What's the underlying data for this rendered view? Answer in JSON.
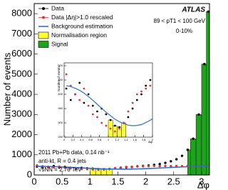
{
  "chart_data": {
    "type": "scatter",
    "xlabel": "Δφ",
    "ylabel": "Number of events",
    "x": [
      0.05,
      0.15,
      0.25,
      0.35,
      0.45,
      0.55,
      0.65,
      0.75,
      0.85,
      0.95,
      1.05,
      1.15,
      1.25,
      1.35,
      1.45,
      1.55,
      1.65,
      1.75,
      1.85,
      1.95,
      2.05,
      2.15,
      2.25,
      2.35,
      2.45,
      2.55,
      2.65,
      2.75,
      2.85,
      2.95,
      3.05,
      3.12
    ],
    "xlim": [
      0,
      3.1416
    ],
    "ylim": [
      0,
      8500
    ],
    "xticks": [
      0,
      0.5,
      1,
      1.5,
      2,
      2.5,
      3
    ],
    "yticks": [
      0,
      1000,
      2000,
      3000,
      4000,
      5000,
      6000,
      7000,
      8000
    ],
    "series": [
      {
        "name": "Data",
        "color": "#000000",
        "style": "points",
        "values": [
          420,
          380,
          400,
          440,
          370,
          400,
          360,
          340,
          350,
          330,
          310,
          290,
          285,
          300,
          320,
          350,
          380,
          400,
          430,
          450,
          470,
          500,
          540,
          600,
          680,
          780,
          950,
          1250,
          1800,
          3000,
          5500,
          8100
        ]
      },
      {
        "name": "Data |Δη|>1.0 rescaled",
        "color": "#e8312f",
        "style": "points",
        "values": [
          470,
          430,
          400,
          380,
          420,
          360,
          330,
          320,
          300,
          290,
          280,
          270,
          280,
          300,
          340,
          370,
          400,
          410,
          420,
          430,
          440,
          450,
          440,
          450,
          440,
          450,
          440,
          450,
          440,
          450,
          440,
          445
        ]
      },
      {
        "name": "Background estimation",
        "color": "#2b6fd6",
        "style": "line",
        "values": [
          430,
          427,
          421,
          414,
          404,
          392,
          379,
          365,
          351,
          337,
          325,
          313,
          304,
          297,
          292,
          290,
          291,
          294,
          301,
          309,
          320,
          332,
          345,
          359,
          373,
          387,
          399,
          410,
          418,
          425,
          429,
          430
        ]
      }
    ],
    "regions": [
      {
        "name": "Normalisation region",
        "color": "#ffff33",
        "range": [
          1,
          1.4
        ]
      },
      {
        "name": "Signal",
        "color": "#1fa31f",
        "range": [
          2.75,
          3.1416
        ]
      }
    ],
    "legend": "upper left",
    "annotations": {
      "experiment": "ATLAS",
      "kinematics": "89 < pT1 < 100 GeV",
      "centrality": "0-10%",
      "dataset": "2011 Pb+Pb data, 0.14 nb⁻¹",
      "jets": "anti-kt, R = 0.4 jets",
      "energy": "√sNN = 2.76 TeV"
    },
    "inset": {
      "xlim": [
        0,
        2
      ],
      "ylim": [
        250,
        510
      ],
      "xlabel": "Δφ",
      "ylabel": "Number of events",
      "xticks": [
        0,
        0.2,
        0.4,
        0.6,
        0.8,
        1,
        1.2,
        1.4,
        1.6,
        1.8,
        2
      ],
      "yticks": [
        250,
        300,
        350,
        400,
        450,
        500
      ]
    }
  }
}
